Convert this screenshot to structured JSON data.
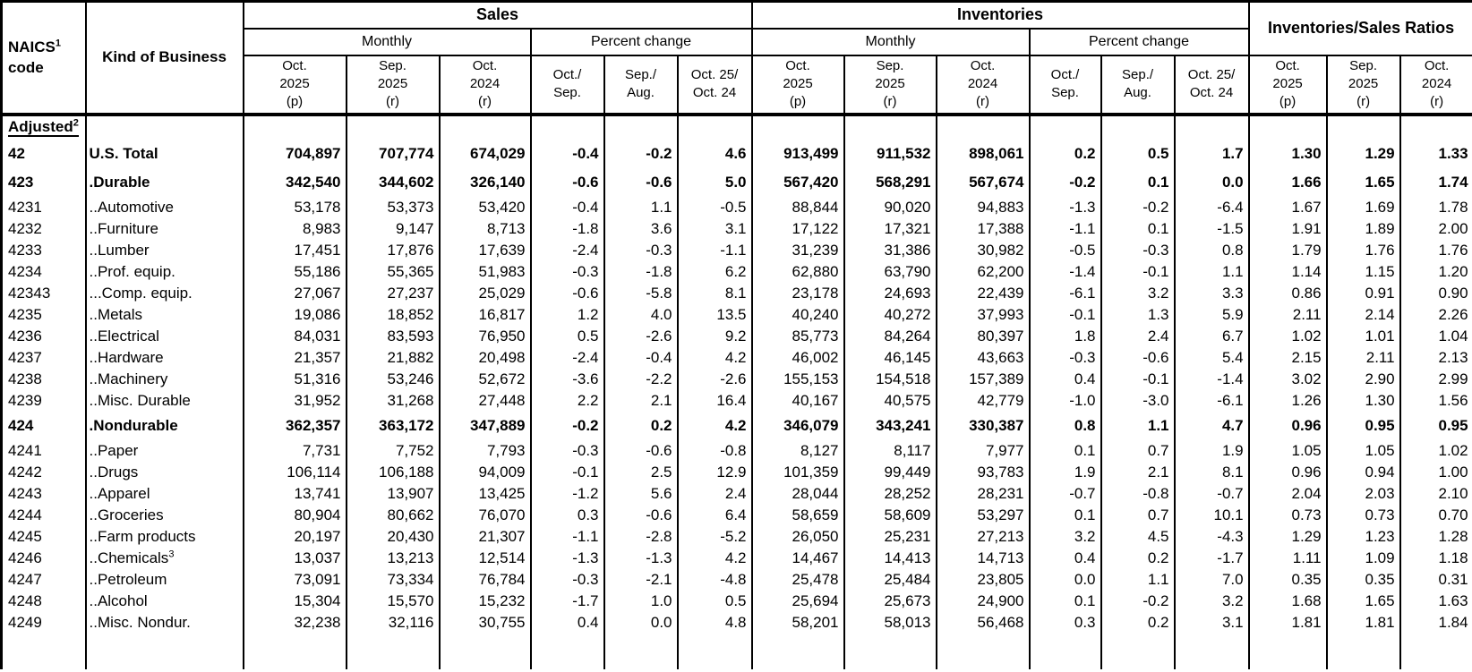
{
  "colors": {
    "text": "#000000",
    "background": "#ffffff",
    "border": "#000000"
  },
  "header": {
    "naics_label": "NAICS",
    "naics_sup": "1",
    "naics_line2": "code",
    "kind_label": "Kind of Business",
    "sales_label": "Sales",
    "inventories_label": "Inventories",
    "ratios_label": "Inventories/Sales Ratios",
    "monthly_label": "Monthly",
    "pct_label": "Percent change",
    "period_cols": [
      [
        "Oct.",
        "2025",
        "(p)"
      ],
      [
        "Sep.",
        "2025",
        "(r)"
      ],
      [
        "Oct.",
        "2024",
        "(r)"
      ]
    ],
    "pct_cols": [
      [
        "Oct./",
        "Sep."
      ],
      [
        "Sep./",
        "Aug."
      ],
      [
        "Oct. 25/",
        "Oct. 24"
      ]
    ],
    "adjusted_label": "Adjusted",
    "adjusted_sup": "2"
  },
  "rows": [
    {
      "code": "42",
      "kind": "U.S. Total",
      "bold": true,
      "values": [
        "704,897",
        "707,774",
        "674,029",
        "-0.4",
        "-0.2",
        "4.6",
        "913,499",
        "911,532",
        "898,061",
        "0.2",
        "0.5",
        "1.7",
        "1.30",
        "1.29",
        "1.33"
      ]
    },
    {
      "code": "423",
      "kind": ".Durable",
      "bold": true,
      "values": [
        "342,540",
        "344,602",
        "326,140",
        "-0.6",
        "-0.6",
        "5.0",
        "567,420",
        "568,291",
        "567,674",
        "-0.2",
        "0.1",
        "0.0",
        "1.66",
        "1.65",
        "1.74"
      ]
    },
    {
      "code": "4231",
      "kind": "..Automotive",
      "bold": false,
      "values": [
        "53,178",
        "53,373",
        "53,420",
        "-0.4",
        "1.1",
        "-0.5",
        "88,844",
        "90,020",
        "94,883",
        "-1.3",
        "-0.2",
        "-6.4",
        "1.67",
        "1.69",
        "1.78"
      ]
    },
    {
      "code": "4232",
      "kind": "..Furniture",
      "bold": false,
      "values": [
        "8,983",
        "9,147",
        "8,713",
        "-1.8",
        "3.6",
        "3.1",
        "17,122",
        "17,321",
        "17,388",
        "-1.1",
        "0.1",
        "-1.5",
        "1.91",
        "1.89",
        "2.00"
      ]
    },
    {
      "code": "4233",
      "kind": "..Lumber",
      "bold": false,
      "values": [
        "17,451",
        "17,876",
        "17,639",
        "-2.4",
        "-0.3",
        "-1.1",
        "31,239",
        "31,386",
        "30,982",
        "-0.5",
        "-0.3",
        "0.8",
        "1.79",
        "1.76",
        "1.76"
      ]
    },
    {
      "code": "4234",
      "kind": "..Prof. equip.",
      "bold": false,
      "values": [
        "55,186",
        "55,365",
        "51,983",
        "-0.3",
        "-1.8",
        "6.2",
        "62,880",
        "63,790",
        "62,200",
        "-1.4",
        "-0.1",
        "1.1",
        "1.14",
        "1.15",
        "1.20"
      ]
    },
    {
      "code": "42343",
      "kind": "...Comp. equip.",
      "bold": false,
      "values": [
        "27,067",
        "27,237",
        "25,029",
        "-0.6",
        "-5.8",
        "8.1",
        "23,178",
        "24,693",
        "22,439",
        "-6.1",
        "3.2",
        "3.3",
        "0.86",
        "0.91",
        "0.90"
      ]
    },
    {
      "code": "4235",
      "kind": "..Metals",
      "bold": false,
      "values": [
        "19,086",
        "18,852",
        "16,817",
        "1.2",
        "4.0",
        "13.5",
        "40,240",
        "40,272",
        "37,993",
        "-0.1",
        "1.3",
        "5.9",
        "2.11",
        "2.14",
        "2.26"
      ]
    },
    {
      "code": "4236",
      "kind": "..Electrical",
      "bold": false,
      "values": [
        "84,031",
        "83,593",
        "76,950",
        "0.5",
        "-2.6",
        "9.2",
        "85,773",
        "84,264",
        "80,397",
        "1.8",
        "2.4",
        "6.7",
        "1.02",
        "1.01",
        "1.04"
      ]
    },
    {
      "code": "4237",
      "kind": "..Hardware",
      "bold": false,
      "values": [
        "21,357",
        "21,882",
        "20,498",
        "-2.4",
        "-0.4",
        "4.2",
        "46,002",
        "46,145",
        "43,663",
        "-0.3",
        "-0.6",
        "5.4",
        "2.15",
        "2.11",
        "2.13"
      ]
    },
    {
      "code": "4238",
      "kind": "..Machinery",
      "bold": false,
      "values": [
        "51,316",
        "53,246",
        "52,672",
        "-3.6",
        "-2.2",
        "-2.6",
        "155,153",
        "154,518",
        "157,389",
        "0.4",
        "-0.1",
        "-1.4",
        "3.02",
        "2.90",
        "2.99"
      ]
    },
    {
      "code": "4239",
      "kind": "..Misc. Durable",
      "bold": false,
      "values": [
        "31,952",
        "31,268",
        "27,448",
        "2.2",
        "2.1",
        "16.4",
        "40,167",
        "40,575",
        "42,779",
        "-1.0",
        "-3.0",
        "-6.1",
        "1.26",
        "1.30",
        "1.56"
      ]
    },
    {
      "code": "424",
      "kind": ".Nondurable",
      "bold": true,
      "values": [
        "362,357",
        "363,172",
        "347,889",
        "-0.2",
        "0.2",
        "4.2",
        "346,079",
        "343,241",
        "330,387",
        "0.8",
        "1.1",
        "4.7",
        "0.96",
        "0.95",
        "0.95"
      ]
    },
    {
      "code": "4241",
      "kind": "..Paper",
      "bold": false,
      "values": [
        "7,731",
        "7,752",
        "7,793",
        "-0.3",
        "-0.6",
        "-0.8",
        "8,127",
        "8,117",
        "7,977",
        "0.1",
        "0.7",
        "1.9",
        "1.05",
        "1.05",
        "1.02"
      ]
    },
    {
      "code": "4242",
      "kind": "..Drugs",
      "bold": false,
      "values": [
        "106,114",
        "106,188",
        "94,009",
        "-0.1",
        "2.5",
        "12.9",
        "101,359",
        "99,449",
        "93,783",
        "1.9",
        "2.1",
        "8.1",
        "0.96",
        "0.94",
        "1.00"
      ]
    },
    {
      "code": "4243",
      "kind": "..Apparel",
      "bold": false,
      "values": [
        "13,741",
        "13,907",
        "13,425",
        "-1.2",
        "5.6",
        "2.4",
        "28,044",
        "28,252",
        "28,231",
        "-0.7",
        "-0.8",
        "-0.7",
        "2.04",
        "2.03",
        "2.10"
      ]
    },
    {
      "code": "4244",
      "kind": "..Groceries",
      "bold": false,
      "values": [
        "80,904",
        "80,662",
        "76,070",
        "0.3",
        "-0.6",
        "6.4",
        "58,659",
        "58,609",
        "53,297",
        "0.1",
        "0.7",
        "10.1",
        "0.73",
        "0.73",
        "0.70"
      ]
    },
    {
      "code": "4245",
      "kind": "..Farm products",
      "bold": false,
      "values": [
        "20,197",
        "20,430",
        "21,307",
        "-1.1",
        "-2.8",
        "-5.2",
        "26,050",
        "25,231",
        "27,213",
        "3.2",
        "4.5",
        "-4.3",
        "1.29",
        "1.23",
        "1.28"
      ]
    },
    {
      "code": "4246",
      "kind": "..Chemicals",
      "kind_sup": "3",
      "bold": false,
      "values": [
        "13,037",
        "13,213",
        "12,514",
        "-1.3",
        "-1.3",
        "4.2",
        "14,467",
        "14,413",
        "14,713",
        "0.4",
        "0.2",
        "-1.7",
        "1.11",
        "1.09",
        "1.18"
      ]
    },
    {
      "code": "4247",
      "kind": "..Petroleum",
      "bold": false,
      "values": [
        "73,091",
        "73,334",
        "76,784",
        "-0.3",
        "-2.1",
        "-4.8",
        "25,478",
        "25,484",
        "23,805",
        "0.0",
        "1.1",
        "7.0",
        "0.35",
        "0.35",
        "0.31"
      ]
    },
    {
      "code": "4248",
      "kind": "..Alcohol",
      "bold": false,
      "values": [
        "15,304",
        "15,570",
        "15,232",
        "-1.7",
        "1.0",
        "0.5",
        "25,694",
        "25,673",
        "24,900",
        "0.1",
        "-0.2",
        "3.2",
        "1.68",
        "1.65",
        "1.63"
      ]
    },
    {
      "code": "4249",
      "kind": "..Misc. Nondur.",
      "bold": false,
      "values": [
        "32,238",
        "32,116",
        "30,755",
        "0.4",
        "0.0",
        "4.8",
        "58,201",
        "58,013",
        "56,468",
        "0.3",
        "0.2",
        "3.1",
        "1.81",
        "1.81",
        "1.84"
      ]
    }
  ]
}
